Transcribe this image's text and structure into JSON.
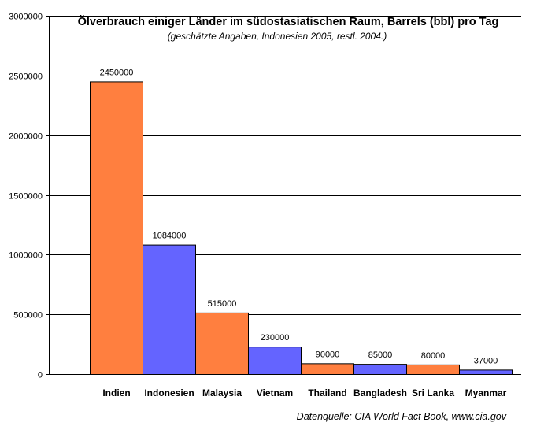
{
  "chart_data": {
    "type": "bar",
    "title": "Ölverbrauch einiger Länder im südostasiatischen Raum, Barrels (bbl) pro Tag",
    "subtitle": "(geschätzte Angaben, Indonesien 2005, restl. 2004.)",
    "source": "Datenquelle: CIA World Fact Book, www.cia.gov",
    "categories": [
      "Indien",
      "Indonesien",
      "Malaysia",
      "Vietnam",
      "Thailand",
      "Bangladesh",
      "Sri Lanka",
      "Myanmar"
    ],
    "values": [
      2450000,
      1084000,
      515000,
      230000,
      90000,
      85000,
      80000,
      37000
    ],
    "data_labels": [
      "2450000",
      "1084000",
      "515000",
      "230000",
      "90000",
      "85000",
      "80000",
      "37000"
    ],
    "bar_colors": [
      "#ff7f3f",
      "#6464ff",
      "#ff7f3f",
      "#6464ff",
      "#ff7f3f",
      "#6464ff",
      "#ff7f3f",
      "#6464ff"
    ],
    "ylim": [
      0,
      3000000
    ],
    "y_ticks": [
      0,
      500000,
      1000000,
      1500000,
      2000000,
      2500000,
      3000000
    ],
    "y_tick_labels": [
      "0",
      "500000",
      "1000000",
      "1500000",
      "2000000",
      "2500000",
      "3000000"
    ],
    "xlabel": "",
    "ylabel": "",
    "grid": true,
    "legend": "none"
  }
}
